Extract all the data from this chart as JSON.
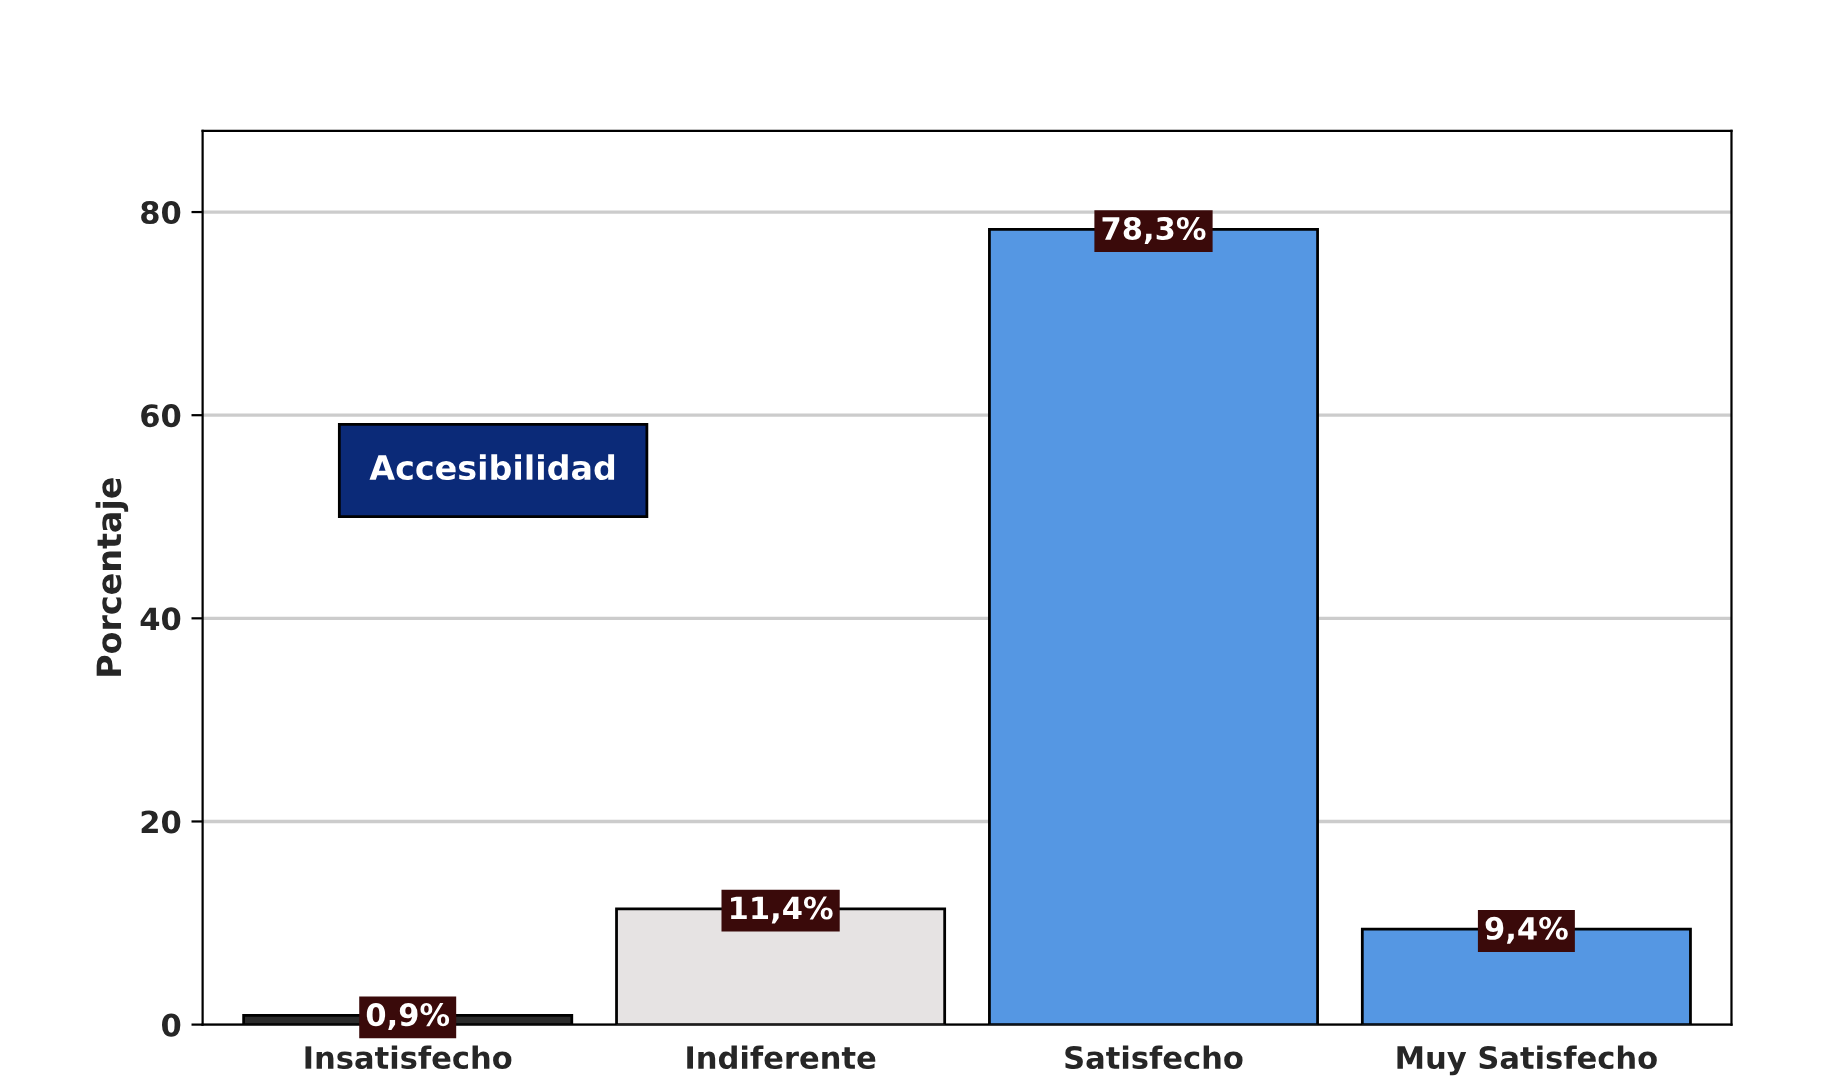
{
  "chart_data": {
    "type": "bar",
    "title": "Accesibilidad",
    "ylabel": "Porcentaje",
    "categories": [
      "Insatisfecho",
      "Indiferente",
      "Satisfecho",
      "Muy Satisfecho"
    ],
    "values": [
      0.9,
      11.4,
      78.3,
      9.4
    ],
    "colors": [
      "#2b2b2b",
      "#e6e3e3",
      "#5597e3",
      "#5597e3"
    ],
    "value_labels": [
      "0,9%",
      "11,4%",
      "78,3%",
      "9,4%"
    ],
    "ylim": [
      0,
      88
    ],
    "yticks": [
      0,
      20,
      40,
      60,
      80
    ],
    "grid": "y",
    "legend": false
  }
}
